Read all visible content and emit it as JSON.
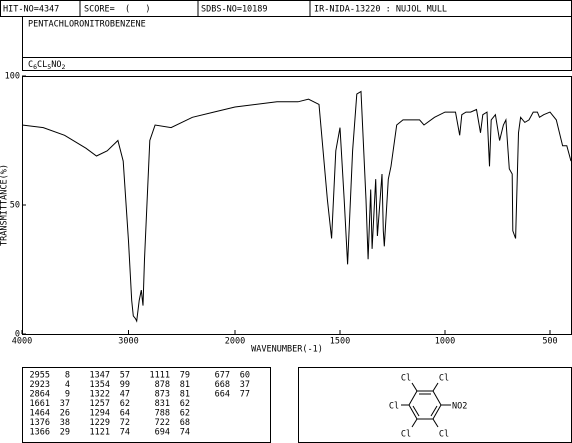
{
  "header": {
    "hit_no": "HIT-NO=4347",
    "score": "SCORE=  (   )",
    "sdbs_no": "SDBS-NO=10189",
    "sample": "IR-NIDA-13220 : NUJOL MULL",
    "name": "PENTACHLORONITROBENZENE",
    "formula": [
      "C",
      "6",
      "CL",
      "5",
      "NO",
      "2"
    ]
  },
  "chart_data": {
    "type": "line",
    "xlabel": "WAVENUMBER(-1)",
    "ylabel": "TRANSMITTANCE(%)",
    "xlim": [
      4000,
      400
    ],
    "x_scale_change": 2000,
    "ylim": [
      0,
      100
    ],
    "xticks": [
      4000,
      3000,
      2000,
      1500,
      1000,
      500
    ],
    "yticks": [
      0,
      50,
      100
    ],
    "series": [
      {
        "name": "spectrum",
        "color": "#000000",
        "x": [
          4000,
          3800,
          3600,
          3400,
          3300,
          3200,
          3100,
          3050,
          3000,
          2970,
          2955,
          2935,
          2923,
          2900,
          2880,
          2864,
          2850,
          2800,
          2750,
          2600,
          2400,
          2200,
          2000,
          1800,
          1700,
          1650,
          1600,
          1560,
          1540,
          1520,
          1500,
          1480,
          1464,
          1440,
          1420,
          1400,
          1376,
          1366,
          1354,
          1347,
          1330,
          1322,
          1300,
          1294,
          1289,
          1270,
          1257,
          1230,
          1200,
          1121,
          1100,
          1050,
          1000,
          950,
          930,
          920,
          900,
          878,
          850,
          831,
          820,
          800,
          788,
          780,
          760,
          740,
          722,
          710,
          694,
          680,
          677,
          664,
          650,
          640,
          620,
          600,
          580,
          560,
          550,
          530,
          500,
          470,
          440,
          420,
          400
        ],
        "values": [
          81,
          80,
          77,
          72,
          69,
          71,
          75,
          67,
          36,
          13,
          7,
          6,
          5,
          13,
          17,
          11,
          29,
          75,
          81,
          80,
          84,
          86,
          88,
          90,
          90,
          91,
          89,
          52,
          37,
          71,
          80,
          52,
          27,
          71,
          93,
          94,
          52,
          29,
          56,
          33,
          60,
          38,
          62,
          40,
          34,
          60,
          65,
          81,
          83,
          83,
          81,
          84,
          86,
          86,
          77,
          85,
          86,
          86,
          87,
          78,
          85,
          86,
          65,
          83,
          85,
          75,
          81,
          83,
          64,
          62,
          40,
          37,
          78,
          84,
          82,
          83,
          86,
          86,
          84,
          85,
          86,
          83,
          73,
          73,
          67
        ]
      }
    ]
  },
  "peak_table": {
    "columns": [
      [
        [
          "2955",
          "8"
        ],
        [
          "2923",
          "4"
        ],
        [
          "2864",
          "9"
        ],
        [
          "1661",
          "37"
        ],
        [
          "1464",
          "26"
        ],
        [
          "1376",
          "38"
        ],
        [
          "1366",
          "29"
        ]
      ],
      [
        [
          "1347",
          "57"
        ],
        [
          "1354",
          "99"
        ],
        [
          "1322",
          "47"
        ],
        [
          "1257",
          "62"
        ],
        [
          "1294",
          "64"
        ],
        [
          "1229",
          "72"
        ],
        [
          "1121",
          "74"
        ]
      ],
      [
        [
          "1111",
          "79"
        ],
        [
          "878",
          "81"
        ],
        [
          "873",
          "81"
        ],
        [
          "831",
          "62"
        ],
        [
          "788",
          "62"
        ],
        [
          "722",
          "68"
        ],
        [
          "694",
          "74"
        ]
      ],
      [
        [
          "677",
          "60"
        ],
        [
          "668",
          "37"
        ],
        [
          "664",
          "77"
        ]
      ]
    ]
  },
  "structure": {
    "labels": [
      "Cl",
      "Cl",
      "Cl",
      "NO2",
      "Cl",
      "Cl"
    ]
  }
}
